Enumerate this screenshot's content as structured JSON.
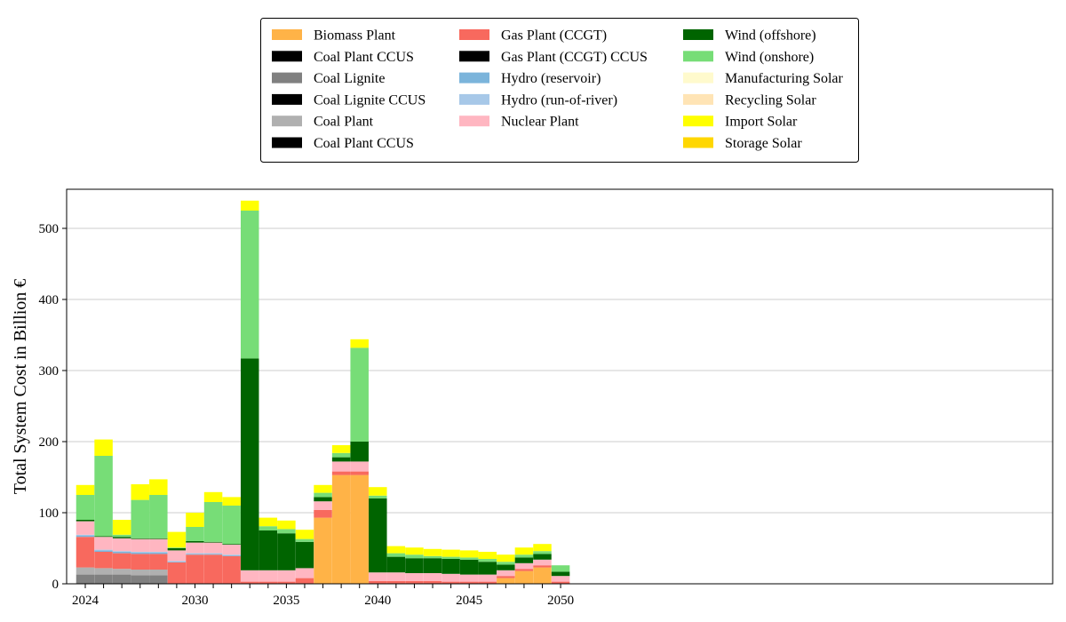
{
  "chart_data": {
    "type": "bar",
    "stacked": true,
    "title": "",
    "xlabel": "",
    "ylabel": "Total System Cost in Billion €",
    "ylim": [
      0,
      555
    ],
    "yticks": [
      0,
      100,
      200,
      300,
      400,
      500
    ],
    "xticks": [
      2024,
      2030,
      2035,
      2040,
      2045,
      2050
    ],
    "grid": "y",
    "legend_position": "top-center",
    "categories": [
      2024,
      2025,
      2026,
      2027,
      2028,
      2029,
      2030,
      2031,
      2032,
      2033,
      2034,
      2035,
      2036,
      2037,
      2038,
      2039,
      2040,
      2041,
      2042,
      2043,
      2044,
      2045,
      2046,
      2047,
      2048,
      2049,
      2050
    ],
    "series": [
      {
        "name": "Biomass Plant",
        "color": "#FFB347",
        "values": [
          0,
          0,
          0,
          0,
          0,
          0,
          0,
          0,
          0,
          0,
          0,
          0,
          0,
          93,
          153,
          153,
          0,
          0,
          0,
          0,
          0,
          0,
          0,
          8,
          18,
          23,
          0
        ]
      },
      {
        "name": "Coal Plant CCUS",
        "color": "#000000",
        "values": [
          0,
          0,
          0,
          0,
          0,
          0,
          0,
          0,
          0,
          0,
          0,
          0,
          0,
          0,
          0,
          0,
          0,
          0,
          0,
          0,
          0,
          0,
          0,
          0,
          0,
          0,
          0
        ]
      },
      {
        "name": "Coal Lignite",
        "color": "#808080",
        "values": [
          13,
          13,
          13,
          12,
          12,
          0,
          0,
          0,
          0,
          0,
          0,
          0,
          0,
          0,
          0,
          0,
          0,
          0,
          0,
          0,
          0,
          0,
          0,
          0,
          0,
          0,
          0
        ]
      },
      {
        "name": "Coal Lignite CCUS",
        "color": "#000000",
        "values": [
          0,
          0,
          0,
          0,
          0,
          0,
          0,
          0,
          0,
          0,
          0,
          0,
          0,
          0,
          0,
          0,
          0,
          0,
          0,
          0,
          0,
          0,
          0,
          0,
          0,
          0,
          0
        ]
      },
      {
        "name": "Coal Plant",
        "color": "#B0B0B0",
        "values": [
          10,
          9,
          8,
          8,
          8,
          0,
          0,
          0,
          0,
          0,
          0,
          0,
          0,
          0,
          0,
          0,
          0,
          0,
          0,
          0,
          0,
          0,
          0,
          0,
          0,
          0,
          0
        ]
      },
      {
        "name": "Coal Plant CCUS",
        "color": "#000000",
        "values": [
          0,
          0,
          0,
          0,
          0,
          0,
          0,
          0,
          0,
          0,
          0,
          0,
          0,
          0,
          0,
          0,
          0,
          0,
          0,
          0,
          0,
          0,
          0,
          0,
          0,
          0,
          0
        ]
      },
      {
        "name": "Gas Plant (CCGT)",
        "color": "#F8695E",
        "values": [
          43,
          23,
          22,
          22,
          22,
          30,
          41,
          41,
          39,
          3,
          3,
          3,
          8,
          11,
          5,
          5,
          4,
          4,
          4,
          4,
          3,
          3,
          3,
          3,
          3,
          3,
          3
        ]
      },
      {
        "name": "Gas Plant (CCGT) CCUS",
        "color": "#000000",
        "values": [
          0,
          0,
          0,
          0,
          0,
          0,
          0,
          0,
          0,
          0,
          0,
          0,
          0,
          0,
          0,
          0,
          0,
          0,
          0,
          0,
          0,
          0,
          0,
          0,
          0,
          0,
          0
        ]
      },
      {
        "name": "Hydro (reservoir)",
        "color": "#7BB4DB",
        "values": [
          2,
          2,
          2,
          2,
          2,
          1,
          1,
          1,
          1,
          0,
          0,
          0,
          0,
          0,
          0,
          0,
          0,
          0,
          0,
          0,
          0,
          0,
          0,
          0,
          0,
          0,
          0
        ]
      },
      {
        "name": "Hydro (run-of-river)",
        "color": "#A7C8E8",
        "values": [
          1,
          1,
          1,
          1,
          1,
          1,
          1,
          1,
          1,
          0,
          0,
          0,
          0,
          0,
          0,
          0,
          0,
          0,
          0,
          0,
          0,
          0,
          0,
          0,
          0,
          0,
          0
        ]
      },
      {
        "name": "Nuclear Plant",
        "color": "#FFB6C1",
        "values": [
          19,
          18,
          18,
          18,
          18,
          15,
          15,
          15,
          14,
          16,
          16,
          16,
          14,
          12,
          14,
          14,
          12,
          12,
          11,
          11,
          11,
          10,
          10,
          8,
          8,
          8,
          8
        ]
      },
      {
        "name": "Wind (offshore)",
        "color": "#006400",
        "values": [
          2,
          1,
          2,
          1,
          1,
          3,
          2,
          1,
          1,
          298,
          56,
          52,
          37,
          6,
          6,
          28,
          104,
          22,
          21,
          21,
          21,
          21,
          18,
          8,
          8,
          8,
          6
        ]
      },
      {
        "name": "Wind (onshore)",
        "color": "#77DD77",
        "values": [
          35,
          113,
          3,
          54,
          61,
          1,
          20,
          56,
          54,
          208,
          6,
          6,
          4,
          6,
          6,
          132,
          4,
          5,
          5,
          3,
          3,
          3,
          4,
          4,
          4,
          4,
          9
        ]
      },
      {
        "name": "Manufacturing Solar",
        "color": "#FFFACD",
        "values": [
          0,
          0,
          0,
          0,
          0,
          0,
          0,
          0,
          0,
          0,
          0,
          0,
          0,
          0,
          0,
          0,
          0,
          0,
          0,
          0,
          0,
          0,
          0,
          0,
          0,
          0,
          0
        ]
      },
      {
        "name": "Recycling Solar",
        "color": "#FFE4B5",
        "values": [
          0,
          0,
          0,
          0,
          0,
          0,
          0,
          0,
          0,
          0,
          0,
          0,
          0,
          0,
          0,
          0,
          0,
          0,
          0,
          0,
          0,
          0,
          0,
          0,
          0,
          0,
          0
        ]
      },
      {
        "name": "Import Solar",
        "color": "#FFFF00",
        "values": [
          14,
          23,
          21,
          22,
          22,
          22,
          20,
          14,
          12,
          14,
          12,
          12,
          13,
          11,
          11,
          12,
          12,
          10,
          10,
          10,
          10,
          10,
          10,
          10,
          10,
          10,
          0
        ]
      },
      {
        "name": "Storage Solar",
        "color": "#FFD700",
        "values": [
          0,
          0,
          0,
          0,
          0,
          0,
          0,
          0,
          0,
          0,
          0,
          0,
          0,
          0,
          0,
          0,
          0,
          0,
          0,
          0,
          0,
          0,
          0,
          0,
          0,
          0,
          0
        ]
      }
    ]
  }
}
